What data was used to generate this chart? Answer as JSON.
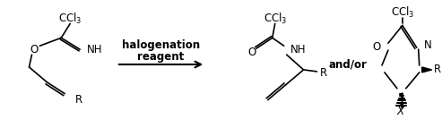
{
  "figsize": [
    4.93,
    1.43
  ],
  "dpi": 100,
  "bg_color": "#ffffff",
  "text_color": "#000000",
  "reagent_line1": "halogenation",
  "reagent_line2": "reagent",
  "andor_text": "and/or"
}
